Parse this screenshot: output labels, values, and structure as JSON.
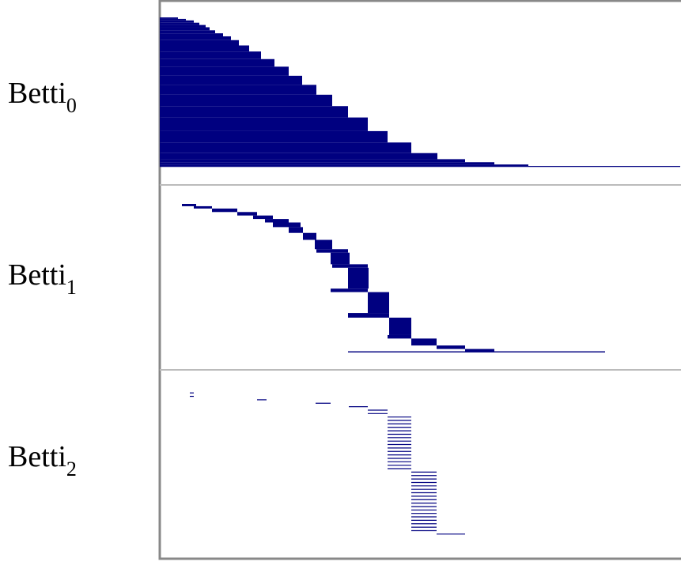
{
  "chart_data": {
    "type": "barcode",
    "color": "#000080",
    "xlim": [
      0,
      658
    ],
    "panels": [
      {
        "label": "Betti",
        "index": "0",
        "bars": [
          {
            "birth": 0,
            "death": 23,
            "count": 2
          },
          {
            "birth": 0,
            "death": 33,
            "count": 2
          },
          {
            "birth": 0,
            "death": 43,
            "count": 3
          },
          {
            "birth": 0,
            "death": 50,
            "count": 3
          },
          {
            "birth": 0,
            "death": 58,
            "count": 3
          },
          {
            "birth": 0,
            "death": 63,
            "count": 4
          },
          {
            "birth": 0,
            "death": 70,
            "count": 4
          },
          {
            "birth": 0,
            "death": 80,
            "count": 4
          },
          {
            "birth": 0,
            "death": 90,
            "count": 5
          },
          {
            "birth": 0,
            "death": 100,
            "count": 7
          },
          {
            "birth": 0,
            "death": 113,
            "count": 8
          },
          {
            "birth": 0,
            "death": 128,
            "count": 10
          },
          {
            "birth": 0,
            "death": 145,
            "count": 10
          },
          {
            "birth": 0,
            "death": 163,
            "count": 12
          },
          {
            "birth": 0,
            "death": 180,
            "count": 12
          },
          {
            "birth": 0,
            "death": 198,
            "count": 13
          },
          {
            "birth": 0,
            "death": 218,
            "count": 15
          },
          {
            "birth": 0,
            "death": 238,
            "count": 15
          },
          {
            "birth": 0,
            "death": 263,
            "count": 18
          },
          {
            "birth": 0,
            "death": 288,
            "count": 15
          },
          {
            "birth": 0,
            "death": 318,
            "count": 14
          },
          {
            "birth": 0,
            "death": 351,
            "count": 8
          },
          {
            "birth": 0,
            "death": 386,
            "count": 4
          },
          {
            "birth": 0,
            "death": 423,
            "count": 3
          },
          {
            "birth": 0,
            "death": 466,
            "count": 2
          },
          {
            "birth": 0,
            "death": 658,
            "count": 1
          }
        ]
      },
      {
        "label": "Betti",
        "index": "1",
        "bars": [
          {
            "birth": 28,
            "death": 46,
            "count": 2
          },
          {
            "birth": 43,
            "death": 66,
            "count": 2
          },
          {
            "birth": 66,
            "death": 98,
            "count": 3
          },
          {
            "birth": 98,
            "death": 123,
            "count": 3
          },
          {
            "birth": 118,
            "death": 143,
            "count": 3
          },
          {
            "birth": 133,
            "death": 163,
            "count": 3
          },
          {
            "birth": 143,
            "death": 178,
            "count": 4
          },
          {
            "birth": 163,
            "death": 181,
            "count": 5
          },
          {
            "birth": 181,
            "death": 198,
            "count": 6
          },
          {
            "birth": 196,
            "death": 218,
            "count": 8
          },
          {
            "birth": 198,
            "death": 238,
            "count": 3
          },
          {
            "birth": 216,
            "death": 240,
            "count": 10
          },
          {
            "birth": 218,
            "death": 263,
            "count": 3
          },
          {
            "birth": 238,
            "death": 264,
            "count": 18
          },
          {
            "birth": 216,
            "death": 263,
            "count": 3
          },
          {
            "birth": 263,
            "death": 290,
            "count": 18
          },
          {
            "birth": 238,
            "death": 290,
            "count": 4
          },
          {
            "birth": 290,
            "death": 318,
            "count": 15
          },
          {
            "birth": 288,
            "death": 318,
            "count": 3
          },
          {
            "birth": 318,
            "death": 350,
            "count": 6
          },
          {
            "birth": 350,
            "death": 386,
            "count": 3
          },
          {
            "birth": 386,
            "death": 423,
            "count": 2
          },
          {
            "birth": 238,
            "death": 563,
            "count": 1
          }
        ]
      },
      {
        "label": "Betti",
        "index": "2",
        "bars": [
          {
            "birth": 38,
            "death": 43,
            "count": 2
          },
          {
            "birth": 123,
            "death": 135,
            "count": 1
          },
          {
            "birth": 197,
            "death": 216,
            "count": 1
          },
          {
            "birth": 239,
            "death": 263,
            "count": 1
          },
          {
            "birth": 263,
            "death": 288,
            "count": 2
          },
          {
            "birth": 288,
            "death": 318,
            "count": 16
          },
          {
            "birth": 318,
            "death": 350,
            "count": 18
          },
          {
            "birth": 350,
            "death": 386,
            "count": 1
          }
        ]
      }
    ]
  }
}
